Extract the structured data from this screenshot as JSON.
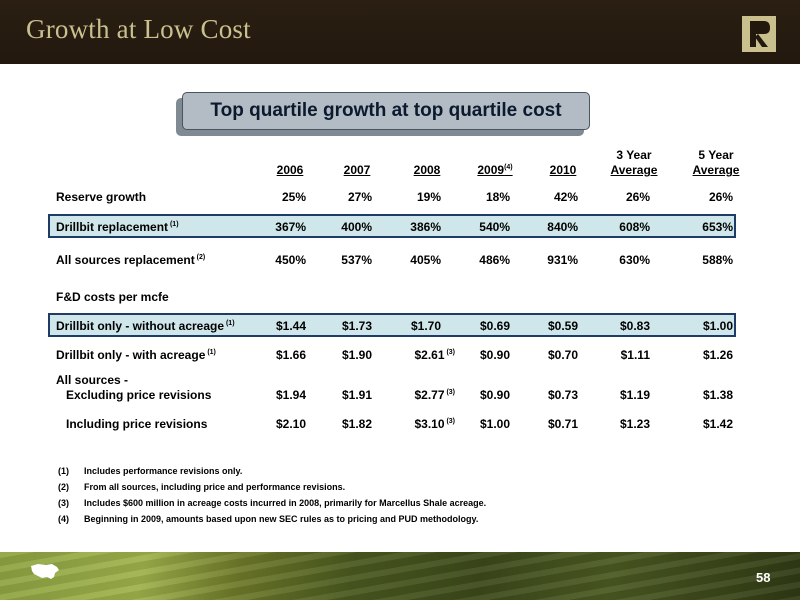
{
  "header": {
    "title": "Growth at Low Cost",
    "logo_icon": "r-monogram-logo"
  },
  "callout": "Top quartile growth at top quartile cost",
  "table": {
    "columns": [
      {
        "top": "",
        "bottom": "2006",
        "sup": ""
      },
      {
        "top": "",
        "bottom": "2007",
        "sup": ""
      },
      {
        "top": "",
        "bottom": "2008",
        "sup": ""
      },
      {
        "top": "",
        "bottom": "2009",
        "sup": "(4)"
      },
      {
        "top": "",
        "bottom": "2010",
        "sup": ""
      },
      {
        "top": "3 Year",
        "bottom": "Average",
        "sup": ""
      },
      {
        "top": "5 Year",
        "bottom": "Average",
        "sup": ""
      }
    ],
    "reserve_growth": {
      "label": "Reserve growth",
      "values": [
        "25%",
        "27%",
        "19%",
        "18%",
        "42%",
        "26%",
        "26%"
      ]
    },
    "drillbit_replacement": {
      "label": "Drillbit replacement",
      "sup": "(1)",
      "values": [
        "367%",
        "400%",
        "386%",
        "540%",
        "840%",
        "608%",
        "653%"
      ]
    },
    "all_sources_replacement": {
      "label": "All sources replacement",
      "sup": "(2)",
      "values": [
        "450%",
        "537%",
        "405%",
        "486%",
        "931%",
        "630%",
        "588%"
      ]
    },
    "fd_section": {
      "label": "F&D costs per mcfe"
    },
    "drillbit_without_acreage": {
      "label": "Drillbit only - without acreage",
      "sup": "(1)",
      "values": [
        "$1.44",
        "$1.73",
        "$1.70",
        "$0.69",
        "$0.59",
        "$0.83",
        "$1.00"
      ]
    },
    "drillbit_with_acreage": {
      "label": "Drillbit only - with acreage",
      "sup": "(1)",
      "values": [
        "$1.66",
        "$1.90",
        "$2.61",
        "$0.90",
        "$0.70",
        "$1.11",
        "$1.26"
      ],
      "note_col": 2,
      "note": "(3)"
    },
    "all_sources": {
      "label": "All sources -"
    },
    "excluding_price": {
      "label": "Excluding price revisions",
      "values": [
        "$1.94",
        "$1.91",
        "$2.77",
        "$0.90",
        "$0.73",
        "$1.19",
        "$1.38"
      ],
      "note_col": 2,
      "note": "(3)"
    },
    "including_price": {
      "label": "Including price revisions",
      "values": [
        "$2.10",
        "$1.82",
        "$3.10",
        "$1.00",
        "$0.71",
        "$1.23",
        "$1.42"
      ],
      "note_col": 2,
      "note": "(3)"
    }
  },
  "footnotes": [
    {
      "num": "(1)",
      "text": "Includes performance revisions only."
    },
    {
      "num": "(2)",
      "text": "From all sources, including price and performance revisions."
    },
    {
      "num": "(3)",
      "text": "Includes $600 million in acreage costs incurred in 2008, primarily for Marcellus Shale acreage."
    },
    {
      "num": "(4)",
      "text": "Beginning in 2009, amounts based upon new SEC rules as to pricing and PUD methodology."
    }
  ],
  "footer": {
    "page_number": "58",
    "map_icon": "us-map-icon"
  },
  "colors": {
    "header_bg": "#22180e",
    "title_color": "#c9c08e",
    "highlight_bg": "#cfe7ea",
    "highlight_border": "#1f3c66"
  }
}
